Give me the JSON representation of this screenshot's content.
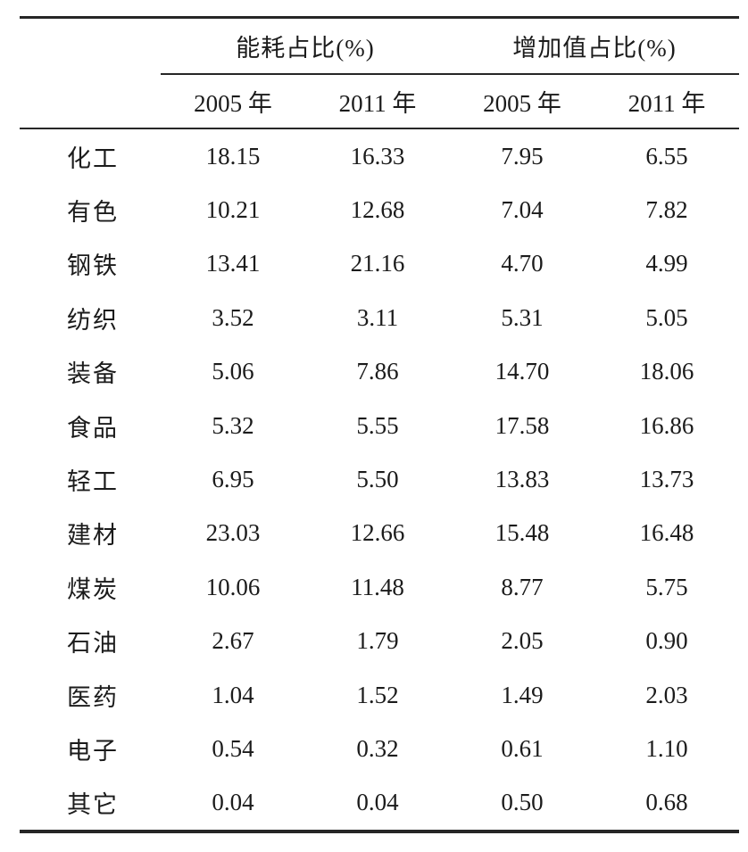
{
  "page": {
    "background": "#ffffff",
    "text_color": "#1b1b1b",
    "rule_color": "#262626"
  },
  "table": {
    "group_headers": [
      {
        "label": "能耗占比(%)"
      },
      {
        "label": "增加值占比(%)"
      }
    ],
    "sub_headers": [
      "2005 年",
      "2011 年",
      "2005 年",
      "2011 年"
    ],
    "rows": [
      {
        "label": "化工",
        "values": [
          "18.15",
          "16.33",
          "7.95",
          "6.55"
        ]
      },
      {
        "label": "有色",
        "values": [
          "10.21",
          "12.68",
          "7.04",
          "7.82"
        ]
      },
      {
        "label": "钢铁",
        "values": [
          "13.41",
          "21.16",
          "4.70",
          "4.99"
        ]
      },
      {
        "label": "纺织",
        "values": [
          "3.52",
          "3.11",
          "5.31",
          "5.05"
        ]
      },
      {
        "label": "装备",
        "values": [
          "5.06",
          "7.86",
          "14.70",
          "18.06"
        ]
      },
      {
        "label": "食品",
        "values": [
          "5.32",
          "5.55",
          "17.58",
          "16.86"
        ]
      },
      {
        "label": "轻工",
        "values": [
          "6.95",
          "5.50",
          "13.83",
          "13.73"
        ]
      },
      {
        "label": "建材",
        "values": [
          "23.03",
          "12.66",
          "15.48",
          "16.48"
        ]
      },
      {
        "label": "煤炭",
        "values": [
          "10.06",
          "11.48",
          "8.77",
          "5.75"
        ]
      },
      {
        "label": "石油",
        "values": [
          "2.67",
          "1.79",
          "2.05",
          "0.90"
        ]
      },
      {
        "label": "医药",
        "values": [
          "1.04",
          "1.52",
          "1.49",
          "2.03"
        ]
      },
      {
        "label": "电子",
        "values": [
          "0.54",
          "0.32",
          "0.61",
          "1.10"
        ]
      },
      {
        "label": "其它",
        "values": [
          "0.04",
          "0.04",
          "0.50",
          "0.68"
        ]
      }
    ]
  }
}
